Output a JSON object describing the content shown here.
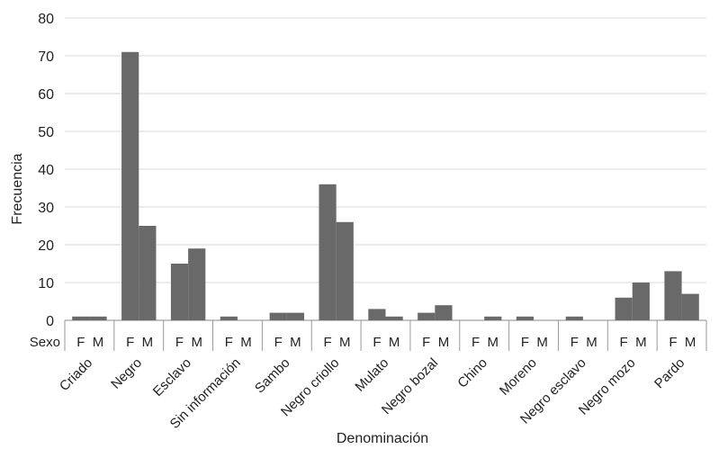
{
  "chart_data": {
    "type": "bar",
    "xlabel": "Denominación",
    "ylabel": "Frecuencia",
    "ylim": [
      0,
      80
    ],
    "yticks": [
      0,
      10,
      20,
      30,
      40,
      50,
      60,
      70,
      80
    ],
    "grid": true,
    "legend": "none",
    "bar_color": "#696969",
    "sex_axis_label": "Sexo",
    "sex_labels": [
      "F",
      "M"
    ],
    "categories": [
      "Criado",
      "Negro",
      "Esclavo",
      "Sin información",
      "Sambo",
      "Negro criollo",
      "Mulato",
      "Negro bozal",
      "Chino",
      "Moreno",
      "Negro esclavo",
      "Negro mozo",
      "Pardo"
    ],
    "series": [
      {
        "values": [
          1,
          71,
          15,
          1,
          2,
          36,
          3,
          2,
          0,
          1,
          1,
          6,
          13
        ]
      },
      {
        "values": [
          1,
          25,
          19,
          0,
          2,
          26,
          1,
          4,
          1,
          0,
          0,
          10,
          7
        ]
      }
    ]
  }
}
